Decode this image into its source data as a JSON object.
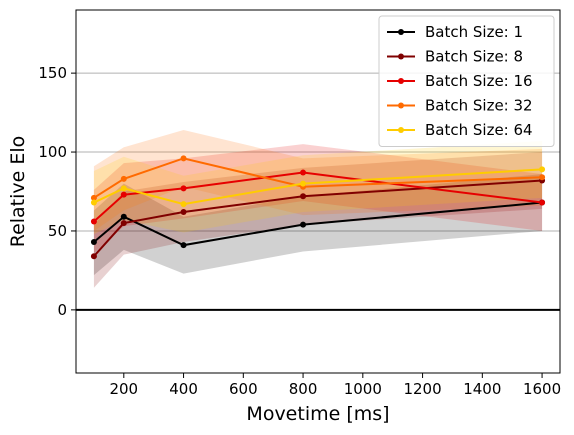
{
  "chart_data": {
    "type": "line",
    "title": "",
    "xlabel": "Movetime [ms]",
    "ylabel": "Relative Elo",
    "xlim": [
      40,
      1660
    ],
    "ylim": [
      -40,
      190
    ],
    "x_ticks": [
      200,
      400,
      600,
      800,
      1000,
      1200,
      1400,
      1600
    ],
    "y_ticks": [
      0,
      50,
      100,
      150
    ],
    "grid": "horizontal",
    "legend_position": "top-right",
    "reference_line_y": 0,
    "x": [
      100,
      200,
      400,
      800,
      1600
    ],
    "series": [
      {
        "name": "Batch Size: 1",
        "color": "#000000",
        "values": [
          43,
          59,
          41,
          54,
          68
        ],
        "lower": [
          22,
          38,
          23,
          37,
          50
        ],
        "upper": [
          63,
          80,
          59,
          72,
          86
        ]
      },
      {
        "name": "Batch Size: 8",
        "color": "#800000",
        "values": [
          34,
          55,
          62,
          72,
          82
        ],
        "lower": [
          14,
          35,
          43,
          54,
          64
        ],
        "upper": [
          54,
          75,
          81,
          90,
          100
        ]
      },
      {
        "name": "Batch Size: 16",
        "color": "#e60000",
        "values": [
          56,
          73,
          77,
          87,
          68
        ],
        "lower": [
          36,
          53,
          58,
          69,
          50
        ],
        "upper": [
          76,
          93,
          96,
          105,
          86
        ]
      },
      {
        "name": "Batch Size: 32",
        "color": "#ff6a00",
        "values": [
          71,
          83,
          96,
          78,
          84
        ],
        "lower": [
          50,
          63,
          78,
          60,
          66
        ],
        "upper": [
          91,
          103,
          114,
          96,
          102
        ]
      },
      {
        "name": "Batch Size: 64",
        "color": "#ffcc00",
        "values": [
          68,
          77,
          67,
          80,
          89
        ],
        "lower": [
          48,
          57,
          49,
          62,
          71
        ],
        "upper": [
          88,
          97,
          85,
          98,
          107
        ]
      }
    ]
  }
}
